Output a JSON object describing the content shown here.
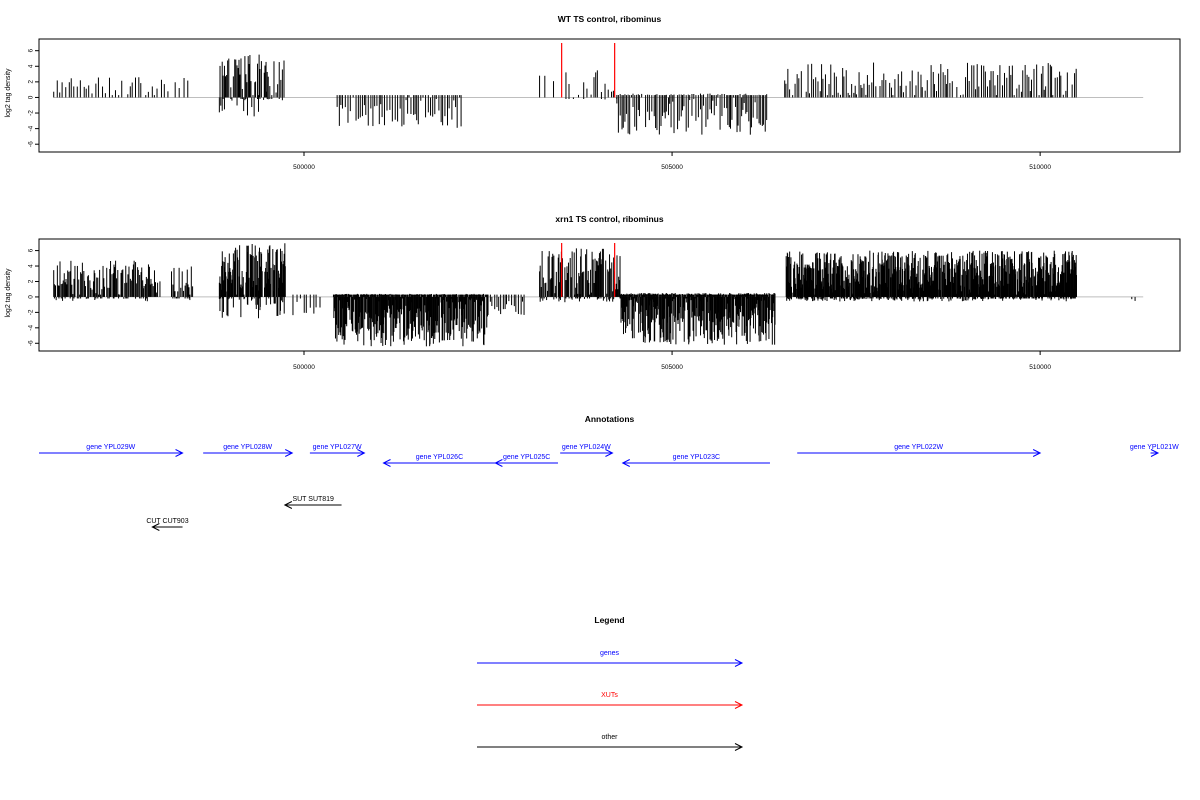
{
  "colors": {
    "gene": "#0000ff",
    "xut": "#ff0000",
    "other": "#000000",
    "zero_line": "#bebebe"
  },
  "chart_data": [
    {
      "type": "bar",
      "title": "WT TS control, ribominus",
      "ylabel": "log2 tag density",
      "xlim": [
        496400,
        511900
      ],
      "ylim": [
        -7,
        7.5
      ],
      "yticks": [
        "6",
        "4",
        "2",
        "0",
        "-2",
        "-4",
        "-6"
      ],
      "xticks": [
        "500000",
        "505000",
        "510000"
      ],
      "highlight_x": [
        503500,
        504220
      ],
      "segments": [
        {
          "start": 496600,
          "end": 497800,
          "max_pos": 2.6,
          "max_neg": 0,
          "step": 40
        },
        {
          "start": 497850,
          "end": 498180,
          "max_pos": 2.3,
          "max_neg": 0,
          "step": 45
        },
        {
          "start": 498250,
          "end": 498450,
          "max_pos": 2.6,
          "max_neg": 0,
          "step": 50
        },
        {
          "start": 498850,
          "end": 499500,
          "max_pos": 5.8,
          "max_neg": 2.6,
          "step": 14
        },
        {
          "start": 499500,
          "end": 499750,
          "max_pos": 5.0,
          "max_neg": 0.4,
          "step": 22
        },
        {
          "start": 500450,
          "end": 502150,
          "max_pos": 0.2,
          "max_neg": 3.9,
          "step": 28
        },
        {
          "start": 503200,
          "end": 503900,
          "max_pos": 3.9,
          "max_neg": 0.3,
          "step": 60
        },
        {
          "start": 503900,
          "end": 504250,
          "max_pos": 3.5,
          "max_neg": 0.4,
          "step": 35
        },
        {
          "start": 504250,
          "end": 506300,
          "max_pos": 0.5,
          "max_neg": 4.8,
          "step": 24
        },
        {
          "start": 506500,
          "end": 510500,
          "max_pos": 4.5,
          "max_neg": 0,
          "step": 26
        }
      ]
    },
    {
      "type": "bar",
      "title": "xrn1 TS control, ribominus",
      "ylabel": "log2 tag density",
      "xlim": [
        496400,
        511900
      ],
      "ylim": [
        -7,
        7.5
      ],
      "yticks": [
        "6",
        "4",
        "2",
        "0",
        "-2",
        "-4",
        "-6"
      ],
      "xticks": [
        "500000",
        "505000",
        "510000"
      ],
      "highlight_x": [
        503500,
        504220
      ],
      "segments": [
        {
          "start": 496600,
          "end": 497900,
          "max_pos": 4.7,
          "max_neg": 0.6,
          "step": 14
        },
        {
          "start": 497900,
          "end": 498050,
          "max_pos": 4.0,
          "max_neg": 0,
          "step": 16
        },
        {
          "start": 498200,
          "end": 498500,
          "max_pos": 4.0,
          "max_neg": 0.5,
          "step": 16
        },
        {
          "start": 498850,
          "end": 499750,
          "max_pos": 7.0,
          "max_neg": 2.8,
          "step": 7
        },
        {
          "start": 499850,
          "end": 500250,
          "max_pos": 0.2,
          "max_neg": 2.5,
          "step": 45
        },
        {
          "start": 500400,
          "end": 502500,
          "max_pos": 0.4,
          "max_neg": 6.4,
          "step": 8
        },
        {
          "start": 502500,
          "end": 503000,
          "max_pos": 0.3,
          "max_neg": 2.6,
          "step": 28
        },
        {
          "start": 503200,
          "end": 504300,
          "max_pos": 6.3,
          "max_neg": 0.7,
          "step": 11
        },
        {
          "start": 504300,
          "end": 506400,
          "max_pos": 0.5,
          "max_neg": 6.2,
          "step": 8
        },
        {
          "start": 506550,
          "end": 510500,
          "max_pos": 6.0,
          "max_neg": 0.6,
          "step": 6
        },
        {
          "start": 511200,
          "end": 511300,
          "max_pos": 0,
          "max_neg": 1.2,
          "step": 50
        }
      ]
    }
  ],
  "annotations": {
    "title": "Annotations",
    "features": [
      {
        "label": "gene YPL029W",
        "kind": "gene",
        "start": 496400,
        "end": 498350,
        "strand": "+",
        "row": 0
      },
      {
        "label": "gene YPL028W",
        "kind": "gene",
        "start": 498630,
        "end": 499840,
        "strand": "+",
        "row": 0
      },
      {
        "label": "gene YPL027W",
        "kind": "gene",
        "start": 500080,
        "end": 500820,
        "strand": "+",
        "row": 0
      },
      {
        "label": "gene YPL026C",
        "kind": "gene",
        "start": 501080,
        "end": 502600,
        "strand": "-",
        "row": 1
      },
      {
        "label": "gene YPL025C",
        "kind": "gene",
        "start": 502600,
        "end": 503450,
        "strand": "-",
        "row": 1
      },
      {
        "label": "gene YPL024W",
        "kind": "gene",
        "start": 503480,
        "end": 504190,
        "strand": "+",
        "row": 0
      },
      {
        "label": "gene YPL023C",
        "kind": "gene",
        "start": 504330,
        "end": 506330,
        "strand": "-",
        "row": 1
      },
      {
        "label": "gene YPL022W",
        "kind": "gene",
        "start": 506700,
        "end": 510000,
        "strand": "+",
        "row": 0
      },
      {
        "label": "gene YPL021W",
        "kind": "gene",
        "start": 511500,
        "end": 512080,
        "strand": "+",
        "row": 0
      },
      {
        "label": "SUT SUT819",
        "kind": "other",
        "start": 499740,
        "end": 500510,
        "strand": "-",
        "row": 2
      },
      {
        "label": "CUT CUT903",
        "kind": "other",
        "start": 497940,
        "end": 498350,
        "strand": "-",
        "row": 3
      }
    ]
  },
  "legend": {
    "title": "Legend",
    "items": [
      {
        "label": "genes",
        "kind": "gene"
      },
      {
        "label": "XUTs",
        "kind": "xut"
      },
      {
        "label": "other",
        "kind": "other"
      }
    ]
  }
}
